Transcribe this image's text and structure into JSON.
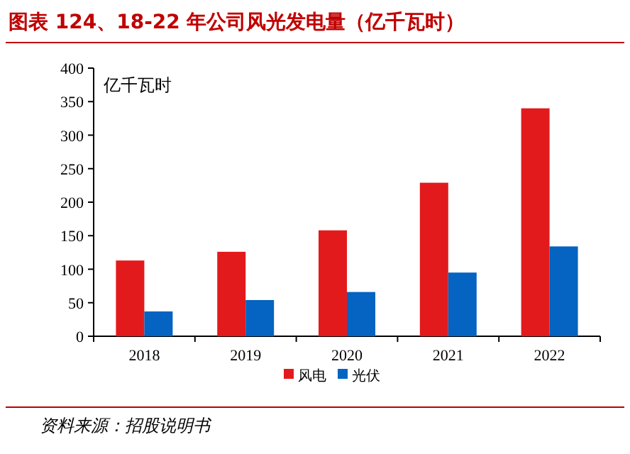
{
  "chart_data": {
    "type": "bar",
    "title": "图表 124、18-22 年公司风光发电量（亿千瓦时）",
    "categories": [
      "2018",
      "2019",
      "2020",
      "2021",
      "2022"
    ],
    "series": [
      {
        "name": "风电",
        "color": "#e31a1c",
        "values": [
          113,
          126,
          158,
          229,
          340
        ]
      },
      {
        "name": "光伏",
        "color": "#0563c1",
        "values": [
          37,
          54,
          66,
          95,
          134
        ]
      }
    ],
    "ylabel": "亿千瓦时",
    "ylim": [
      0,
      400
    ],
    "yticks": [
      0,
      50,
      100,
      150,
      200,
      250,
      300,
      350,
      400
    ],
    "grid": false,
    "legend": "bottom",
    "annotations": [
      "资料来源：招股说明书"
    ]
  }
}
